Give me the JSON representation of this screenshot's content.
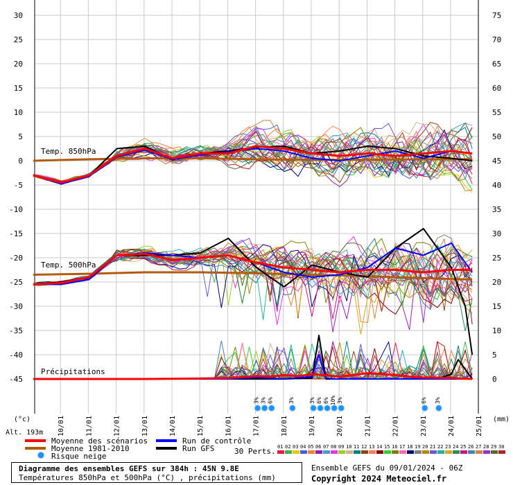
{
  "chart_data": {
    "type": "line",
    "title": "Diagramme des ensembles GEFS sur 384h : 45N 9.8E",
    "subtitle": "Températures 850hPa et 500hPa (°C) , précipitations (mm)",
    "run_info": "Ensemble GEFS du 09/01/2024 - 06Z",
    "copyright": "Copyright 2024 Meteociel.fr",
    "altitude": "Alt. 193m",
    "left_unit": "(°c)",
    "right_unit": "(mm)",
    "left_axis": {
      "range": [
        -45,
        30
      ],
      "ticks": [
        "30",
        "25",
        "20",
        "15",
        "10",
        "5",
        "0",
        "-5",
        "-10",
        "-15",
        "-20",
        "-25",
        "-30",
        "-35",
        "-40",
        "-45"
      ]
    },
    "right_axis": {
      "ticks": [
        "75",
        "70",
        "65",
        "60",
        "55",
        "50",
        "45",
        "40",
        "35",
        "30",
        "25",
        "20",
        "15",
        "10",
        "5",
        "0"
      ]
    },
    "x_ticks": [
      "10/01",
      "11/01",
      "12/01",
      "13/01",
      "14/01",
      "15/01",
      "16/01",
      "17/01",
      "18/01",
      "19/01",
      "20/01",
      "21/01",
      "22/01",
      "23/01",
      "24/01",
      "25/01"
    ],
    "panel_labels": {
      "t850": "Temp. 850hPa",
      "t500": "Temp. 500hPa",
      "precip": "Précipitations"
    },
    "legend": {
      "mean": "Moyenne des scénarios",
      "clim": "Moyenne 1981-2010",
      "snow": "Risque neige",
      "control": "Run de contrôle",
      "gfs": "Run GFS",
      "perts": "30 Perts."
    },
    "pert_labels": [
      "01",
      "02",
      "03",
      "04",
      "05",
      "06",
      "07",
      "08",
      "09",
      "10",
      "11",
      "12",
      "13",
      "14",
      "15",
      "16",
      "17",
      "18",
      "19",
      "20",
      "21",
      "22",
      "23",
      "24",
      "25",
      "26",
      "27",
      "28",
      "29",
      "30"
    ],
    "pert_colors": [
      "#e6194b",
      "#3cb44b",
      "#e6c619",
      "#4363d8",
      "#f58231",
      "#911eb4",
      "#46a0c0",
      "#f032e6",
      "#9acd32",
      "#d2b48c",
      "#008080",
      "#8b4513",
      "#ff7f50",
      "#800000",
      "#32cd32",
      "#808000",
      "#ff69b4",
      "#000075",
      "#808080",
      "#b8860b",
      "#6a5acd",
      "#20b2aa",
      "#daa520",
      "#2e8b57",
      "#c71585",
      "#4682b4",
      "#cd853f",
      "#9932cc",
      "#556b2f",
      "#b22222"
    ],
    "colors": {
      "mean": "#ff0000",
      "clim": "#b05a0a",
      "control": "#0000ff",
      "gfs": "#000000",
      "snow": "#1e90ff"
    },
    "snow_risk": [
      {
        "x": 8.0,
        "pct": "3%"
      },
      {
        "x": 8.25,
        "pct": "3%"
      },
      {
        "x": 8.5,
        "pct": "6%"
      },
      {
        "x": 9.25,
        "pct": "3%"
      },
      {
        "x": 10.0,
        "pct": "3%"
      },
      {
        "x": 10.25,
        "pct": "6%"
      },
      {
        "x": 10.5,
        "pct": "6%"
      },
      {
        "x": 10.75,
        "pct": "10%"
      },
      {
        "x": 11.0,
        "pct": "3%"
      },
      {
        "x": 14.0,
        "pct": "6%"
      },
      {
        "x": 14.5,
        "pct": "3%"
      }
    ],
    "series": [
      {
        "name": "Moyenne des scénarios",
        "panel": "t850",
        "x": [
          0,
          1,
          2,
          3,
          4,
          5,
          6,
          7,
          8,
          9,
          10,
          11,
          12,
          13,
          14,
          15,
          15.75
        ],
        "values": [
          -3,
          -4.5,
          -3,
          1,
          2.5,
          0.5,
          1.5,
          1.5,
          3,
          2.5,
          1.5,
          1,
          1.5,
          1,
          1.5,
          2,
          1.5
        ]
      },
      {
        "name": "Moyenne 1981-2010",
        "panel": "t850",
        "x": [
          0,
          2,
          4,
          6,
          8,
          10,
          12,
          14,
          15.75
        ],
        "values": [
          0,
          0.3,
          0.5,
          0.5,
          0.3,
          0.2,
          0.2,
          0.3,
          0.3
        ]
      },
      {
        "name": "Run de contrôle",
        "panel": "t850",
        "x": [
          0,
          1,
          2,
          3,
          4,
          5,
          6,
          7,
          8,
          9,
          10,
          11,
          12,
          13,
          14,
          15,
          15.75
        ],
        "values": [
          -3,
          -4.8,
          -3.2,
          0.8,
          2.2,
          0.3,
          1.2,
          1.8,
          2.5,
          2,
          0.5,
          0,
          1,
          2,
          0.5,
          2,
          1.5
        ]
      },
      {
        "name": "Run GFS",
        "panel": "t850",
        "x": [
          0,
          1,
          2,
          3,
          4,
          5,
          6,
          7,
          8,
          9,
          10,
          11,
          12,
          13,
          14,
          15,
          15.75
        ],
        "values": [
          -3,
          -4.6,
          -3.1,
          2.5,
          3,
          0.2,
          1.5,
          2,
          2.8,
          3,
          1.5,
          2,
          3,
          2.5,
          1,
          0.5,
          0
        ]
      },
      {
        "name": "Moyenne des scénarios",
        "panel": "t500",
        "x": [
          0,
          1,
          2,
          3,
          4,
          5,
          6,
          7,
          8,
          9,
          10,
          11,
          12,
          13,
          14,
          15,
          15.75
        ],
        "values": [
          -25.5,
          -25.2,
          -24,
          -19.5,
          -19.2,
          -20.5,
          -20,
          -19.5,
          -21,
          -22,
          -22.5,
          -23,
          -22.5,
          -22.5,
          -23,
          -22.5,
          -22.5
        ]
      },
      {
        "name": "Moyenne 1981-2010",
        "panel": "t500",
        "x": [
          0,
          2,
          4,
          6,
          8,
          10,
          12,
          14,
          15.75
        ],
        "values": [
          -23.5,
          -23.3,
          -23,
          -23,
          -23.2,
          -23.5,
          -23.8,
          -24.2,
          -24.5
        ]
      },
      {
        "name": "Run de contrôle",
        "panel": "t500",
        "x": [
          0,
          1,
          2,
          3,
          4,
          5,
          6,
          7,
          8,
          9,
          10,
          11,
          12,
          13,
          14,
          15,
          15.75
        ],
        "values": [
          -25.5,
          -25.5,
          -24.5,
          -19.5,
          -19,
          -19.5,
          -20,
          -19.5,
          -21,
          -23,
          -24,
          -23.5,
          -22,
          -18,
          -19.5,
          -17,
          -23
        ]
      },
      {
        "name": "Run GFS",
        "panel": "t500",
        "x": [
          0,
          1,
          2,
          3,
          4,
          5,
          6,
          7,
          8,
          9,
          10,
          11,
          12,
          13,
          14,
          15,
          15.5,
          15.75
        ],
        "values": [
          -25.5,
          -25,
          -24,
          -19.5,
          -19.5,
          -19.5,
          -19,
          -16,
          -22,
          -26,
          -21.5,
          -23,
          -24,
          -18,
          -14,
          -22,
          -30,
          -40
        ]
      },
      {
        "name": "Moyenne des scénarios",
        "panel": "precip",
        "x": [
          0,
          2,
          4,
          6,
          7,
          8,
          8.5,
          9,
          9.5,
          10,
          11,
          12,
          13,
          13.5,
          14,
          15,
          15.75
        ],
        "values": [
          0,
          0,
          0,
          0.1,
          0.2,
          0.6,
          0.5,
          0.8,
          0.6,
          1,
          0.5,
          1.2,
          0.8,
          0.5,
          0.3,
          0.2,
          0
        ]
      },
      {
        "name": "Run de contrôle",
        "panel": "precip",
        "x": [
          0,
          6,
          7,
          8,
          9,
          10,
          10.25,
          10.5,
          10.75,
          11,
          12,
          13,
          14,
          15,
          15.75
        ],
        "values": [
          0,
          0,
          0,
          0.3,
          0,
          0.5,
          5,
          0.2,
          0,
          0,
          0,
          0,
          0,
          0,
          0
        ]
      },
      {
        "name": "Run GFS",
        "panel": "precip",
        "x": [
          0,
          7,
          8,
          9,
          10,
          10.25,
          10.5,
          11,
          12,
          13,
          14,
          14.5,
          15,
          15.25,
          15.5,
          15.75
        ],
        "values": [
          0,
          0,
          0,
          0,
          0.2,
          9,
          0,
          0,
          0,
          0,
          0,
          0,
          1,
          4,
          2,
          0
        ]
      }
    ]
  }
}
